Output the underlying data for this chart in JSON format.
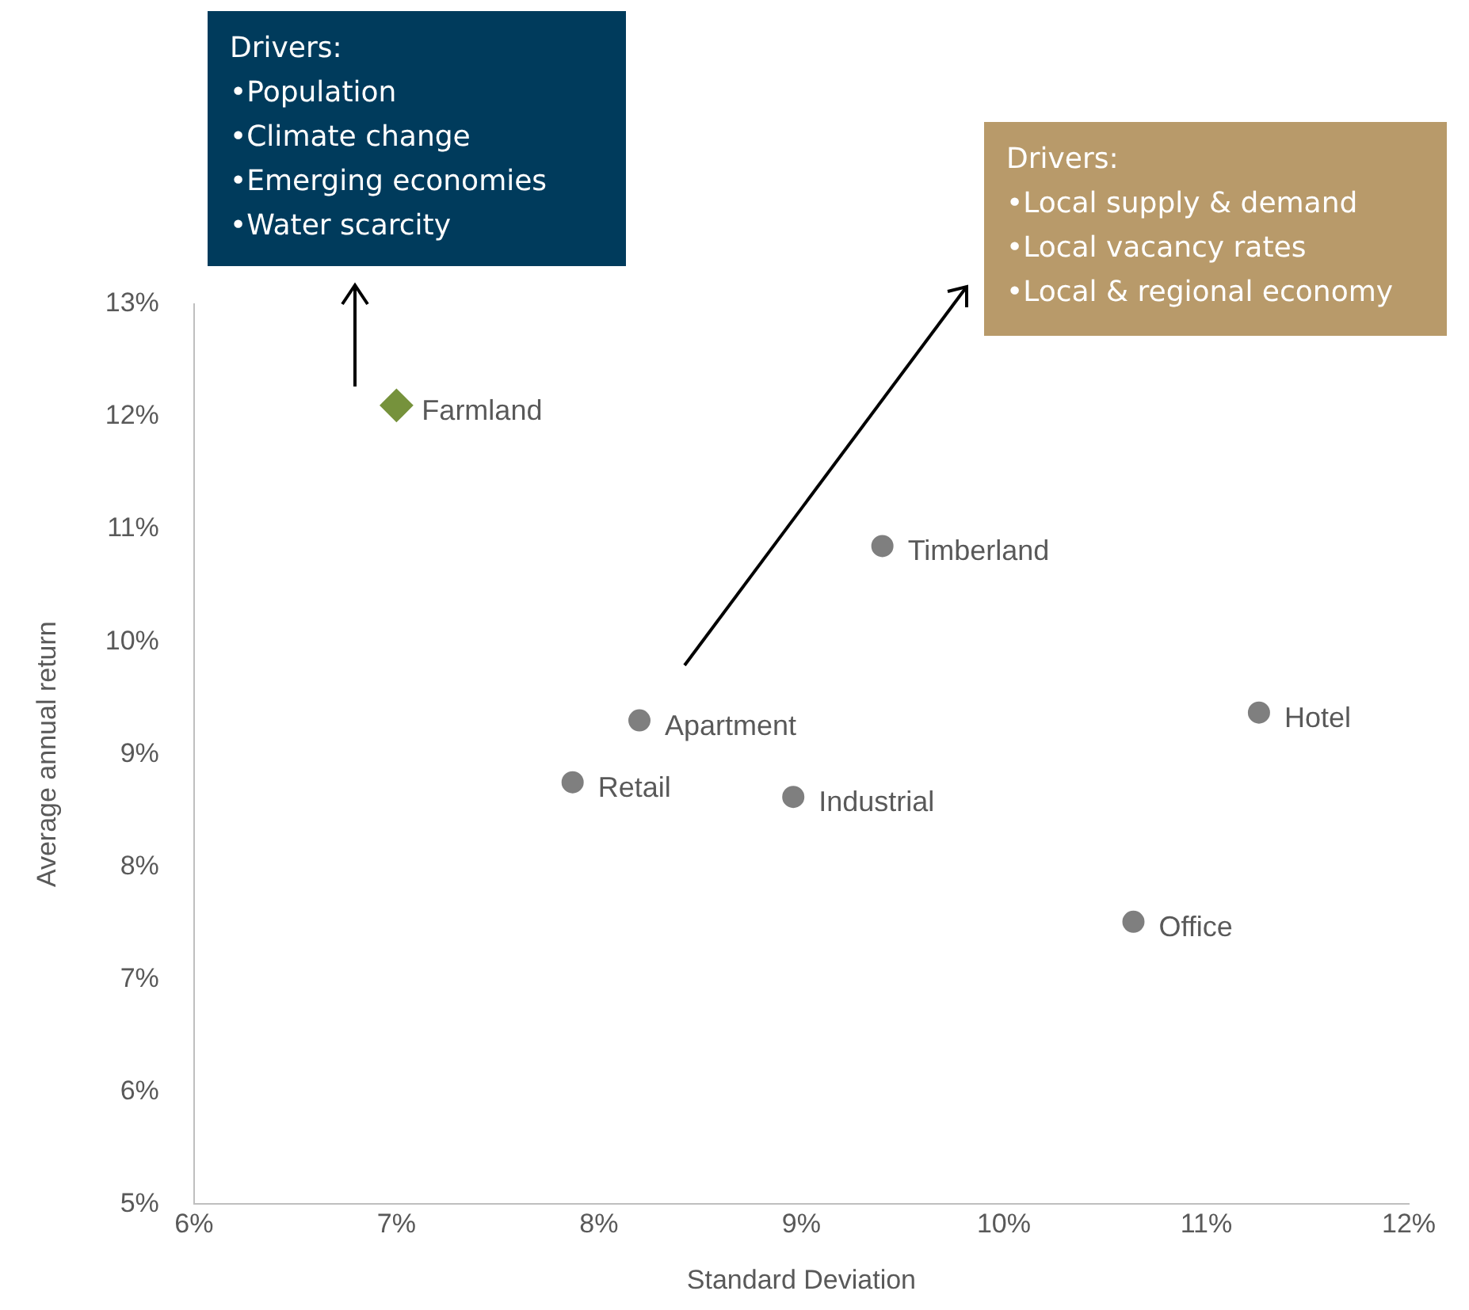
{
  "chart_data": {
    "type": "scatter",
    "xlabel": "Standard Deviation",
    "ylabel": "Average annual return",
    "xlim": [
      6,
      12
    ],
    "xticks": [
      {
        "value": 6,
        "label": "6%"
      },
      {
        "value": 7,
        "label": "7%"
      },
      {
        "value": 8,
        "label": "8%"
      },
      {
        "value": 9,
        "label": "9%"
      },
      {
        "value": 10,
        "label": "10%"
      },
      {
        "value": 11,
        "label": "11%"
      },
      {
        "value": 12,
        "label": "12%"
      }
    ],
    "ylim": [
      5,
      13
    ],
    "yticks": [
      {
        "value": 5,
        "label": "5%"
      },
      {
        "value": 6,
        "label": "6%"
      },
      {
        "value": 7,
        "label": "7%"
      },
      {
        "value": 8,
        "label": "8%"
      },
      {
        "value": 9,
        "label": "9%"
      },
      {
        "value": 10,
        "label": "10%"
      },
      {
        "value": 11,
        "label": "11%"
      },
      {
        "value": 12,
        "label": "12%"
      },
      {
        "value": 13,
        "label": "13%"
      }
    ],
    "grid": false,
    "legend": false,
    "series": [
      {
        "name": "Farmland",
        "color": "#76923c",
        "marker": "diamond",
        "x": [
          7.0
        ],
        "values": [
          12.1
        ]
      },
      {
        "name": "Timberland",
        "color": "#7f7f7f",
        "marker": "circle",
        "x": [
          9.4
        ],
        "values": [
          10.85
        ]
      },
      {
        "name": "Apartment",
        "color": "#7f7f7f",
        "marker": "circle",
        "x": [
          8.2
        ],
        "values": [
          9.3
        ]
      },
      {
        "name": "Retail",
        "color": "#7f7f7f",
        "marker": "circle",
        "x": [
          7.87
        ],
        "values": [
          8.75
        ]
      },
      {
        "name": "Industrial",
        "color": "#7f7f7f",
        "marker": "circle",
        "x": [
          8.96
        ],
        "values": [
          8.62
        ]
      },
      {
        "name": "Hotel",
        "color": "#7f7f7f",
        "marker": "circle",
        "x": [
          11.26
        ],
        "values": [
          9.37
        ]
      },
      {
        "name": "Office",
        "color": "#7f7f7f",
        "marker": "circle",
        "x": [
          10.64
        ],
        "values": [
          7.51
        ]
      }
    ],
    "annotations": [
      "Drivers:\n•Population\n•Climate change\n•Emerging economies\n•Water scarcity",
      "Drivers:\n•Local supply & demand\n•Local vacancy rates\n•Local & regional economy"
    ]
  }
}
